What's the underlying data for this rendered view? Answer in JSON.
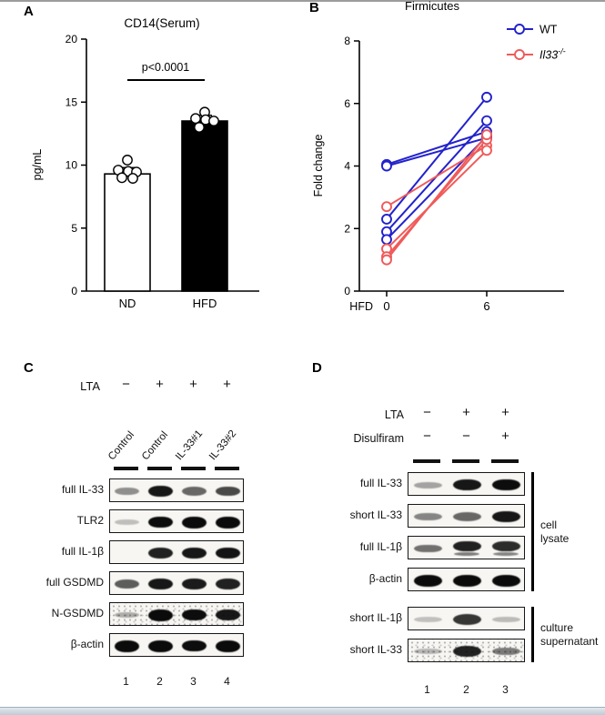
{
  "panelA": {
    "label": "A",
    "chart": {
      "type": "bar",
      "title": "CD14(Serum)",
      "ylabel": "pg/mL",
      "ylim": [
        0,
        20
      ],
      "yticks": [
        0,
        5,
        10,
        15,
        20
      ],
      "categories": [
        "ND",
        "HFD"
      ],
      "values": [
        9.3,
        13.5
      ],
      "errors": [
        0.5,
        0.45
      ],
      "bar_fills": [
        "#ffffff",
        "#000000"
      ],
      "points": [
        [
          10.4,
          9.6,
          9.5,
          9.45,
          9.0,
          8.95
        ],
        [
          14.2,
          13.7,
          13.6,
          13.5,
          13.0
        ]
      ],
      "significance": {
        "text": "p<0.0001",
        "y": 16.75
      }
    }
  },
  "panelB": {
    "label": "B",
    "chart": {
      "type": "line-paired",
      "title": "Firmicutes",
      "ylabel": "Fold change",
      "ylim": [
        0,
        8
      ],
      "yticks": [
        0,
        2,
        4,
        6,
        8
      ],
      "x_prefix": "HFD",
      "xticks": [
        "0",
        "6"
      ],
      "series": [
        {
          "legend": {
            "text": "WT",
            "sup": "",
            "italic": false
          },
          "color": "#2222cc",
          "pairs": [
            [
              4.05,
              5.1
            ],
            [
              4.0,
              4.9
            ],
            [
              2.3,
              6.2
            ],
            [
              1.9,
              5.45
            ],
            [
              1.65,
              4.95
            ]
          ]
        },
        {
          "legend": {
            "text": "Il33",
            "sup": "-/-",
            "italic": true
          },
          "color": "#f05a5a",
          "pairs": [
            [
              2.7,
              4.65
            ],
            [
              1.35,
              4.5
            ],
            [
              1.1,
              4.85
            ],
            [
              1.0,
              5.0
            ]
          ]
        }
      ]
    }
  },
  "panelC": {
    "label": "C",
    "treatment": {
      "label": "LTA",
      "signs": [
        "−",
        "+",
        "+",
        "+"
      ]
    },
    "lanes": [
      "Control",
      "Control",
      "IL-33#1",
      "IL-33#2"
    ],
    "lane_numbers": [
      "1",
      "2",
      "3",
      "4"
    ],
    "rows": [
      {
        "label": "full IL-33",
        "bands": [
          0.3,
          0.9,
          0.5,
          0.65
        ]
      },
      {
        "label": "TLR2",
        "bands": [
          0.06,
          0.95,
          1,
          1
        ]
      },
      {
        "label": "full IL-1β",
        "bands": [
          0.04,
          0.85,
          0.9,
          0.92
        ]
      },
      {
        "label": "full GSDMD",
        "bands": [
          0.55,
          0.9,
          0.88,
          0.85
        ]
      },
      {
        "label": "N-GSDMD",
        "bands": [
          0.15,
          1,
          0.95,
          0.9
        ],
        "speckle": true
      },
      {
        "label": "β-actin",
        "bands": [
          1,
          1,
          0.95,
          1
        ]
      }
    ]
  },
  "panelD": {
    "label": "D",
    "treatments": [
      {
        "label": "LTA",
        "signs": [
          "−",
          "+",
          "+"
        ]
      },
      {
        "label": "Disulfiram",
        "signs": [
          "−",
          "−",
          "+"
        ]
      }
    ],
    "lane_numbers": [
      "1",
      "2",
      "3"
    ],
    "groups": [
      {
        "bracket_label": [
          "cell",
          "lysate"
        ],
        "rows": [
          {
            "label": "full IL-33",
            "bands": [
              0.2,
              0.9,
              0.95
            ]
          },
          {
            "label": "short IL-33",
            "bands": [
              0.35,
              0.5,
              0.9
            ]
          },
          {
            "label": "full IL-1β",
            "bands": [
              0.45,
              0.85,
              0.8
            ],
            "double": true
          },
          {
            "label": "β-actin",
            "bands": [
              1,
              1,
              1
            ]
          }
        ]
      },
      {
        "bracket_label": [
          "culture",
          "supernatant"
        ],
        "rows": [
          {
            "label": "short IL-1β",
            "bands": [
              0.05,
              0.75,
              0.08
            ]
          },
          {
            "label": "short IL-33",
            "bands": [
              0.1,
              0.85,
              0.4
            ],
            "speckle": true
          }
        ]
      }
    ]
  },
  "chart_data": [
    {
      "type": "bar",
      "title": "CD14(Serum)",
      "ylabel": "pg/mL",
      "ylim": [
        0,
        20
      ],
      "categories": [
        "ND",
        "HFD"
      ],
      "values": [
        9.3,
        13.5
      ],
      "points": {
        "ND": [
          10.4,
          9.6,
          9.5,
          9.45,
          9.0,
          8.95
        ],
        "HFD": [
          14.2,
          13.7,
          13.6,
          13.5,
          13.0
        ]
      },
      "annotation": "p<0.0001"
    },
    {
      "type": "line",
      "title": "Firmicutes",
      "ylabel": "Fold change",
      "ylim": [
        0,
        8
      ],
      "x": [
        "HFD 0",
        "6"
      ],
      "series": [
        {
          "name": "WT",
          "pairs": [
            [
              4.05,
              5.1
            ],
            [
              4.0,
              4.9
            ],
            [
              2.3,
              6.2
            ],
            [
              1.9,
              5.45
            ],
            [
              1.65,
              4.95
            ]
          ]
        },
        {
          "name": "Il33-/-",
          "pairs": [
            [
              2.7,
              4.65
            ],
            [
              1.35,
              4.5
            ],
            [
              1.1,
              4.85
            ],
            [
              1.0,
              5.0
            ]
          ]
        }
      ],
      "legend_position": "top-right"
    }
  ]
}
